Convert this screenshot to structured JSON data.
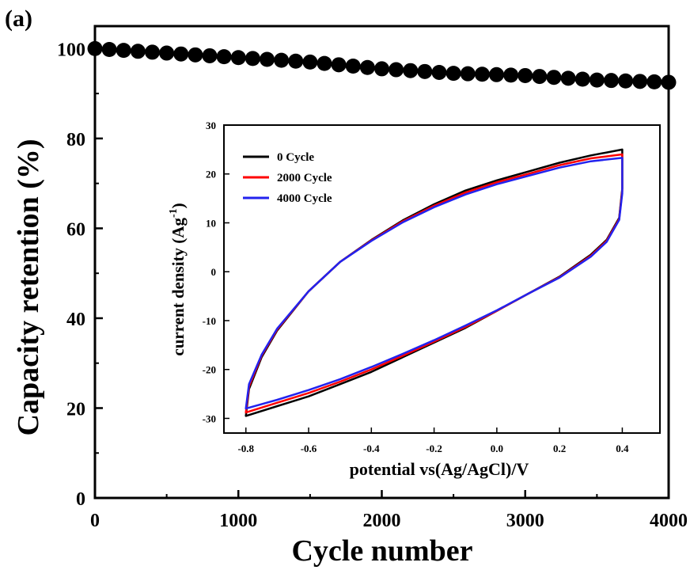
{
  "panel_label": "(a)",
  "chart_data": [
    {
      "type": "scatter",
      "xlabel": "Cycle number",
      "ylabel": "Capacity retention (%)",
      "xlim": [
        0,
        4000
      ],
      "ylim": [
        0,
        105
      ],
      "xticks": [
        0,
        1000,
        2000,
        3000,
        4000
      ],
      "xtick_labels": [
        "0",
        "1000",
        "2000",
        "3000",
        "4000"
      ],
      "yticks": [
        0,
        20,
        40,
        60,
        80,
        100
      ],
      "ytick_labels": [
        "0",
        "20",
        "40",
        "60",
        "80",
        "100"
      ],
      "grid": false,
      "marker_color": "#000000",
      "series": [
        {
          "x": [
            0,
            100,
            200,
            300,
            400,
            500,
            600,
            700,
            800,
            900,
            1000,
            1100,
            1200,
            1300,
            1400,
            1500,
            1600,
            1700,
            1800,
            1900,
            2000,
            2100,
            2200,
            2300,
            2400,
            2500,
            2600,
            2700,
            2800,
            2900,
            3000,
            3100,
            3200,
            3300,
            3400,
            3500,
            3600,
            3700,
            3800,
            3900,
            4000
          ],
          "values": [
            100,
            99.8,
            99.6,
            99.4,
            99.2,
            99.0,
            98.8,
            98.6,
            98.4,
            98.2,
            98.0,
            97.8,
            97.6,
            97.4,
            97.2,
            97.0,
            96.7,
            96.4,
            96.1,
            95.8,
            95.5,
            95.3,
            95.1,
            94.9,
            94.7,
            94.5,
            94.4,
            94.3,
            94.2,
            94.1,
            94.0,
            93.8,
            93.6,
            93.4,
            93.2,
            93.0,
            92.9,
            92.8,
            92.7,
            92.6,
            92.5
          ]
        }
      ]
    },
    {
      "type": "line",
      "xlabel": "potential vs(Ag/AgCl)/V",
      "ylabel_main": "current density (Ag",
      "ylabel_sup": "-1",
      "ylabel_close": ")",
      "xlim": [
        -0.87,
        0.52
      ],
      "ylim": [
        -33,
        30
      ],
      "xticks": [
        -0.8,
        -0.6,
        -0.4,
        -0.2,
        0.0,
        0.2,
        0.4
      ],
      "xtick_labels": [
        "-0.8",
        "-0.6",
        "-0.4",
        "-0.2",
        "0.0",
        "0.2",
        "0.4"
      ],
      "yticks": [
        -30,
        -20,
        -10,
        0,
        10,
        20,
        30
      ],
      "ytick_labels": [
        "-30",
        "-20",
        "-10",
        "0",
        "10",
        "20",
        "30"
      ],
      "grid": false,
      "legend_position": "top-left",
      "series": [
        {
          "name": "0 Cycle",
          "color": "#000000",
          "x": [
            -0.8,
            -0.79,
            -0.75,
            -0.7,
            -0.6,
            -0.5,
            -0.4,
            -0.3,
            -0.2,
            -0.1,
            0.0,
            0.1,
            0.2,
            0.3,
            0.4,
            0.4,
            0.39,
            0.35,
            0.3,
            0.2,
            0.1,
            0.0,
            -0.1,
            -0.2,
            -0.3,
            -0.4,
            -0.5,
            -0.6,
            -0.7,
            -0.8
          ],
          "values": [
            -29.5,
            -24,
            -17.5,
            -12,
            -4,
            2,
            6.5,
            10.5,
            13.8,
            16.6,
            18.7,
            20.5,
            22.3,
            23.8,
            25,
            17,
            11,
            6.5,
            3.5,
            -1,
            -4.5,
            -8,
            -11.5,
            -14.5,
            -17.5,
            -20.5,
            -23,
            -25.5,
            -27.5,
            -29.5
          ]
        },
        {
          "name": "2000 Cycle",
          "color": "#ff0000",
          "x": [
            -0.8,
            -0.79,
            -0.75,
            -0.7,
            -0.6,
            -0.5,
            -0.4,
            -0.3,
            -0.2,
            -0.1,
            0.0,
            0.1,
            0.2,
            0.3,
            0.4,
            0.4,
            0.39,
            0.35,
            0.3,
            0.2,
            0.1,
            0.0,
            -0.1,
            -0.2,
            -0.3,
            -0.4,
            -0.5,
            -0.6,
            -0.7,
            -0.8
          ],
          "values": [
            -28.8,
            -23.5,
            -17.2,
            -11.8,
            -4,
            2,
            6.4,
            10.3,
            13.5,
            16.2,
            18.3,
            20,
            21.8,
            23.2,
            24,
            16.5,
            10.8,
            6.3,
            3.3,
            -1.1,
            -4.5,
            -8,
            -11.3,
            -14.3,
            -17.2,
            -20,
            -22.5,
            -24.8,
            -26.8,
            -28.8
          ]
        },
        {
          "name": "4000 Cycle",
          "color": "#2222ee",
          "x": [
            -0.8,
            -0.79,
            -0.75,
            -0.7,
            -0.6,
            -0.5,
            -0.4,
            -0.3,
            -0.2,
            -0.1,
            0.0,
            0.1,
            0.2,
            0.3,
            0.4,
            0.4,
            0.39,
            0.35,
            0.3,
            0.2,
            0.1,
            0.0,
            -0.1,
            -0.2,
            -0.3,
            -0.4,
            -0.5,
            -0.6,
            -0.7,
            -0.8
          ],
          "values": [
            -28,
            -23,
            -17,
            -11.6,
            -4,
            2,
            6.3,
            10.1,
            13.2,
            15.8,
            17.9,
            19.6,
            21.3,
            22.6,
            23.3,
            16,
            10.6,
            6.1,
            3.1,
            -1.2,
            -4.5,
            -7.9,
            -11,
            -14,
            -16.8,
            -19.5,
            -22,
            -24.2,
            -26.2,
            -28
          ]
        }
      ]
    }
  ]
}
